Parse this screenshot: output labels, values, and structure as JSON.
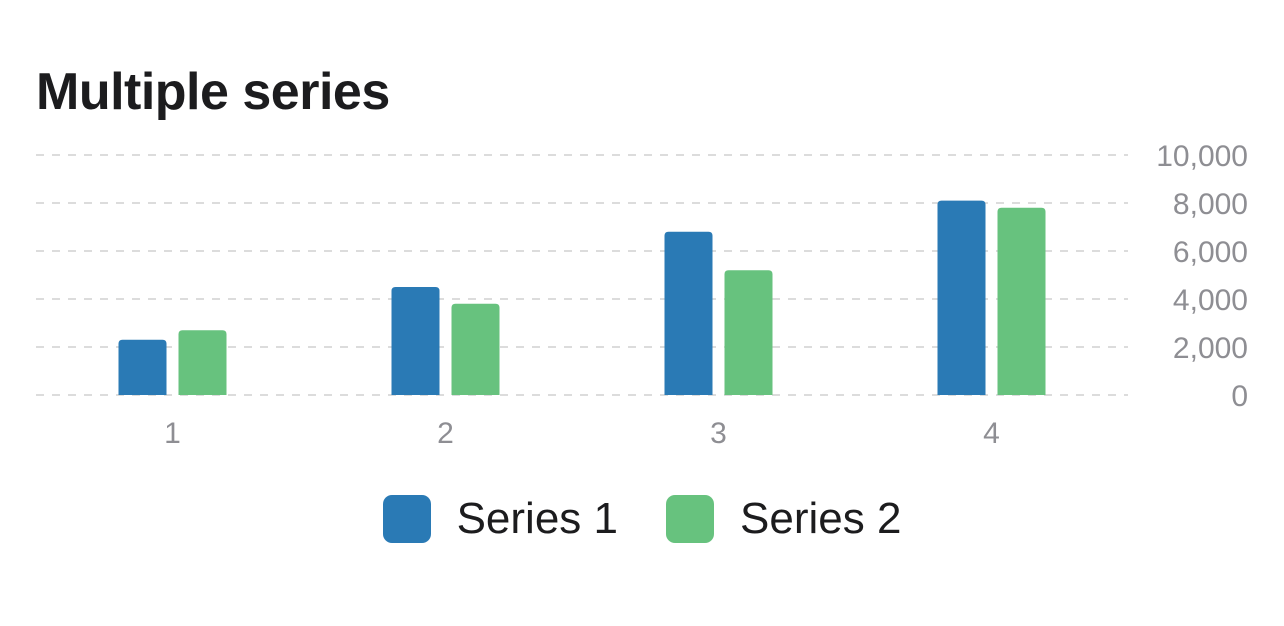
{
  "chart_data": {
    "type": "bar",
    "title": "Multiple series",
    "categories": [
      "1",
      "2",
      "3",
      "4"
    ],
    "series": [
      {
        "name": "Series 1",
        "color": "#2a7ab5",
        "values": [
          2300,
          4500,
          6800,
          8100
        ]
      },
      {
        "name": "Series 2",
        "color": "#67c27e",
        "values": [
          2700,
          3800,
          5200,
          7800
        ]
      }
    ],
    "ylim": [
      0,
      10000
    ],
    "yticks": [
      "0",
      "2,000",
      "4,000",
      "6,000",
      "8,000",
      "10,000"
    ],
    "ytick_values": [
      0,
      2000,
      4000,
      6000,
      8000,
      10000
    ],
    "y_axis_position": "right",
    "grid": true,
    "legend_position": "bottom"
  }
}
